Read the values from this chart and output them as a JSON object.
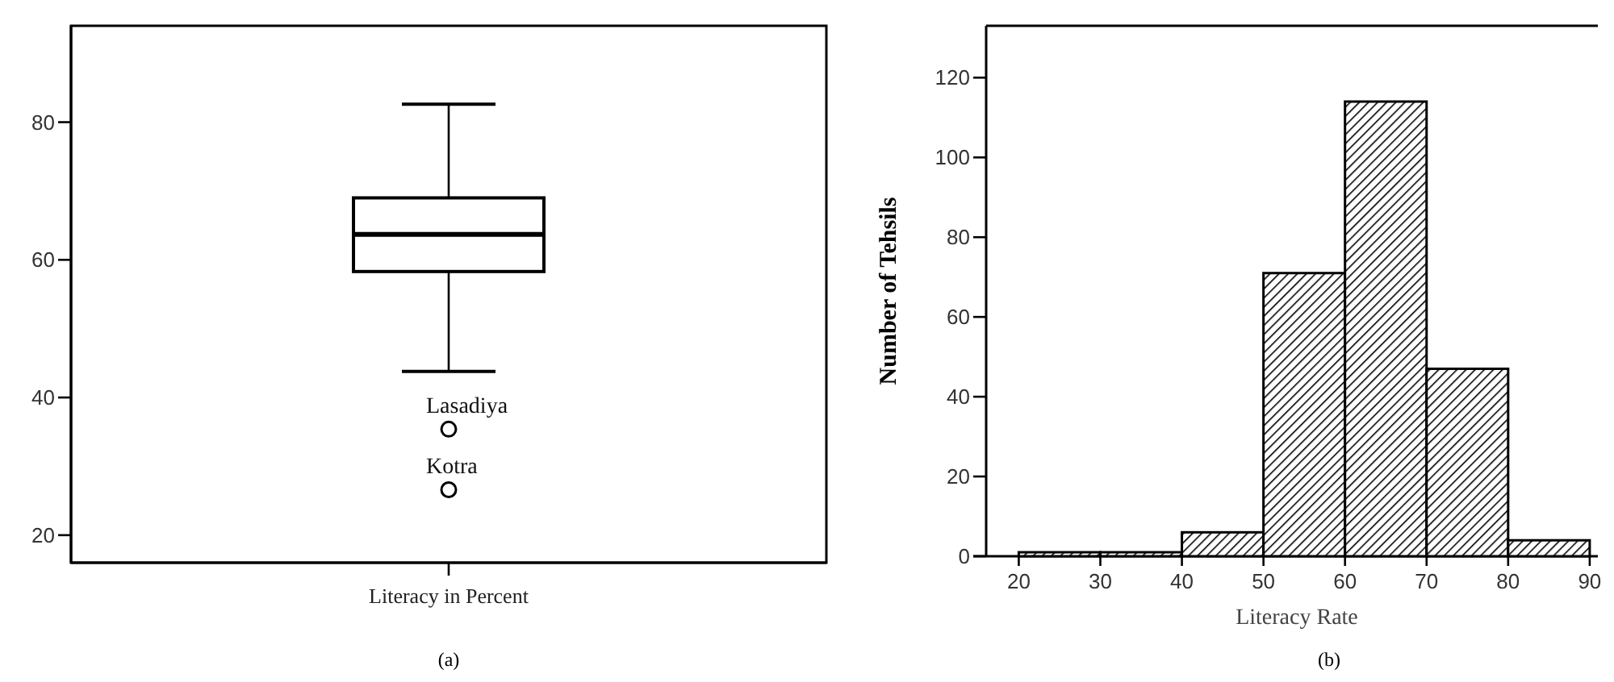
{
  "chart_data": [
    {
      "type": "box",
      "categories": [
        "Literacy in Percent"
      ],
      "boxes": [
        {
          "low": 43.8,
          "q1": 58.3,
          "median": 63.7,
          "q3": 69.0,
          "high": 82.6,
          "outliers": [
            35.4,
            26.6
          ]
        }
      ],
      "ylim": [
        16,
        94
      ],
      "yticks": [
        20,
        40,
        60,
        80
      ],
      "grid": false,
      "annotations": [
        "Lasadiya",
        "Kotra",
        "(a)"
      ]
    },
    {
      "type": "histogram",
      "bins": [
        20,
        30,
        40,
        50,
        60,
        70,
        80,
        90
      ],
      "values": [
        1,
        1,
        6,
        71,
        114,
        47,
        4
      ],
      "color": "#000000",
      "xlim": [
        16,
        91
      ],
      "xticks": [
        20,
        30,
        40,
        50,
        60,
        70,
        80,
        90
      ],
      "ylim": [
        0,
        133
      ],
      "yticks": [
        0,
        20,
        40,
        60,
        80,
        100,
        120
      ],
      "xlabel": "Literacy Rate",
      "ylabel": "Number of Tehsils",
      "grid": false,
      "annotations": [
        "(b)"
      ]
    }
  ]
}
